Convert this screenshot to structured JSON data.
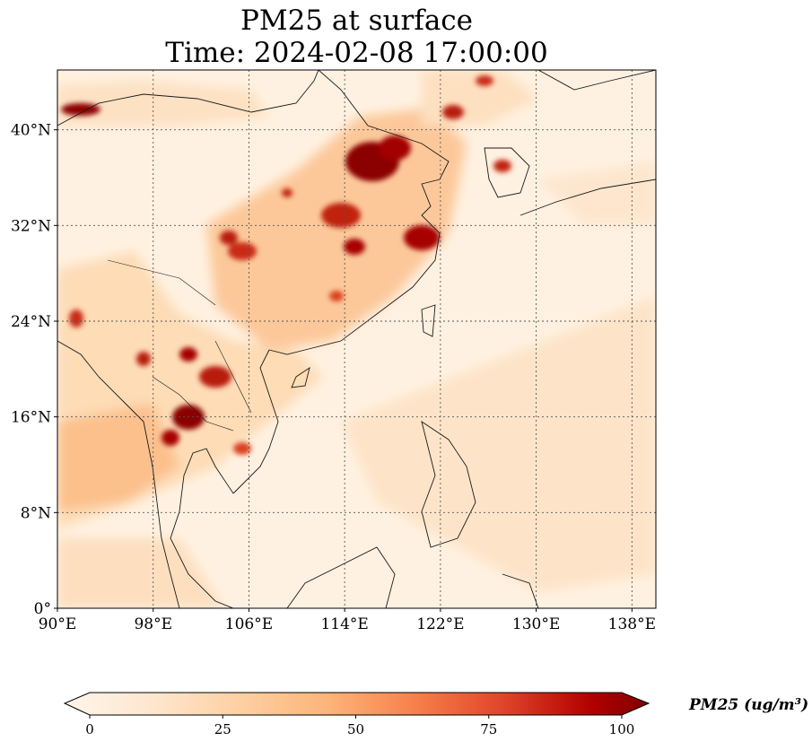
{
  "title_line1": "PM25 at surface",
  "title_line2": "Time: 2024-02-08 17:00:00",
  "map_extent": {
    "lon": [
      90,
      140
    ],
    "lat": [
      0,
      45
    ]
  },
  "lon_ticks": [
    {
      "value": 90,
      "label": "90°E"
    },
    {
      "value": 98,
      "label": "98°E"
    },
    {
      "value": 106,
      "label": "106°E"
    },
    {
      "value": 114,
      "label": "114°E"
    },
    {
      "value": 122,
      "label": "122°E"
    },
    {
      "value": 130,
      "label": "130°E"
    },
    {
      "value": 138,
      "label": "138°E"
    }
  ],
  "lat_ticks": [
    {
      "value": 0,
      "label": "0°"
    },
    {
      "value": 8,
      "label": "8°N"
    },
    {
      "value": 16,
      "label": "16°N"
    },
    {
      "value": 24,
      "label": "24°N"
    },
    {
      "value": 32,
      "label": "32°N"
    },
    {
      "value": 40,
      "label": "40°N"
    }
  ],
  "colorbar": {
    "min": 0,
    "max": 100,
    "ticks": [
      {
        "value": 0,
        "label": "0"
      },
      {
        "value": 25,
        "label": "25"
      },
      {
        "value": 50,
        "label": "50"
      },
      {
        "value": 75,
        "label": "75"
      },
      {
        "value": 100,
        "label": "100"
      }
    ],
    "colors": [
      "#fff5eb",
      "#fee6ce",
      "#fdd0a2",
      "#fdae6b",
      "#fd8d3c",
      "#f16913",
      "#d94801",
      "#a60000",
      "#7f0000"
    ],
    "unit_label": "PM25 (ug/m³)",
    "colormap": "OrRd"
  },
  "colors": {
    "coastline": "#1a1a1a",
    "gridline": "#555555",
    "background": "#fff5eb"
  }
}
